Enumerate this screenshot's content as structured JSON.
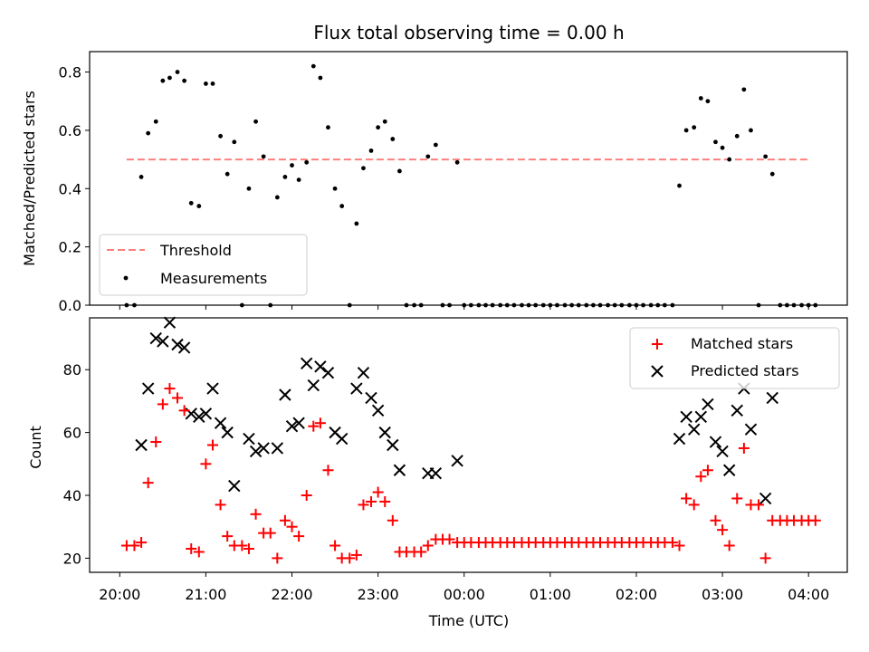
{
  "chart_data": [
    {
      "type": "scatter",
      "title": "Flux total observing time = 0.00 h",
      "xlabel": "",
      "ylabel": "Matched/Predicted stars",
      "ylim": [
        0,
        0.87
      ],
      "yticks": [
        0.0,
        0.2,
        0.4,
        0.6,
        0.8
      ],
      "ytick_labels": [
        "0.0",
        "0.2",
        "0.4",
        "0.6",
        "0.8"
      ],
      "x_unit": "hours since 20:00 UTC",
      "xlim": [
        -0.35,
        8.45
      ],
      "grid": false,
      "legend_position": "lower-left",
      "threshold": {
        "name": "Threshold",
        "value": 0.5,
        "x_range": [
          0.08,
          8.03
        ],
        "color": "#ff7f7f"
      },
      "series": [
        {
          "name": "Measurements",
          "color": "#000000",
          "points": [
            [
              0.08,
              0
            ],
            [
              0.17,
              0
            ],
            [
              0.25,
              0.44
            ],
            [
              0.33,
              0.59
            ],
            [
              0.42,
              0.63
            ],
            [
              0.5,
              0.77
            ],
            [
              0.58,
              0.78
            ],
            [
              0.67,
              0.8
            ],
            [
              0.75,
              0.77
            ],
            [
              0.83,
              0.35
            ],
            [
              0.92,
              0.34
            ],
            [
              1.0,
              0.76
            ],
            [
              1.08,
              0.76
            ],
            [
              1.17,
              0.58
            ],
            [
              1.25,
              0.45
            ],
            [
              1.33,
              0.56
            ],
            [
              1.42,
              0
            ],
            [
              1.5,
              0.4
            ],
            [
              1.58,
              0.63
            ],
            [
              1.67,
              0.51
            ],
            [
              1.75,
              0
            ],
            [
              1.83,
              0.37
            ],
            [
              1.92,
              0.44
            ],
            [
              2.0,
              0.48
            ],
            [
              2.08,
              0.43
            ],
            [
              2.17,
              0.49
            ],
            [
              2.25,
              0.82
            ],
            [
              2.33,
              0.78
            ],
            [
              2.42,
              0.61
            ],
            [
              2.5,
              0.4
            ],
            [
              2.58,
              0.34
            ],
            [
              2.67,
              0
            ],
            [
              2.75,
              0.28
            ],
            [
              2.83,
              0.47
            ],
            [
              2.92,
              0.53
            ],
            [
              3.0,
              0.61
            ],
            [
              3.08,
              0.63
            ],
            [
              3.17,
              0.57
            ],
            [
              3.25,
              0.46
            ],
            [
              3.33,
              0
            ],
            [
              3.42,
              0
            ],
            [
              3.5,
              0
            ],
            [
              3.58,
              0.51
            ],
            [
              3.67,
              0.55
            ],
            [
              3.75,
              0
            ],
            [
              3.83,
              0
            ],
            [
              3.92,
              0.49
            ],
            [
              4.0,
              0
            ],
            [
              4.08,
              0
            ],
            [
              4.17,
              0
            ],
            [
              4.25,
              0
            ],
            [
              4.33,
              0
            ],
            [
              4.42,
              0
            ],
            [
              4.5,
              0
            ],
            [
              4.58,
              0
            ],
            [
              4.67,
              0
            ],
            [
              4.75,
              0
            ],
            [
              4.83,
              0
            ],
            [
              4.92,
              0
            ],
            [
              5.0,
              0
            ],
            [
              5.08,
              0
            ],
            [
              5.17,
              0
            ],
            [
              5.25,
              0
            ],
            [
              5.33,
              0
            ],
            [
              5.42,
              0
            ],
            [
              5.5,
              0
            ],
            [
              5.58,
              0
            ],
            [
              5.67,
              0
            ],
            [
              5.75,
              0
            ],
            [
              5.83,
              0
            ],
            [
              5.92,
              0
            ],
            [
              6.0,
              0
            ],
            [
              6.08,
              0
            ],
            [
              6.17,
              0
            ],
            [
              6.25,
              0
            ],
            [
              6.33,
              0
            ],
            [
              6.42,
              0
            ],
            [
              6.5,
              0.41
            ],
            [
              6.58,
              0.6
            ],
            [
              6.67,
              0.61
            ],
            [
              6.75,
              0.71
            ],
            [
              6.83,
              0.7
            ],
            [
              6.92,
              0.56
            ],
            [
              7.0,
              0.54
            ],
            [
              7.08,
              0.5
            ],
            [
              7.17,
              0.58
            ],
            [
              7.25,
              0.74
            ],
            [
              7.33,
              0.6
            ],
            [
              7.42,
              0
            ],
            [
              7.5,
              0.51
            ],
            [
              7.58,
              0.45
            ],
            [
              7.67,
              0
            ],
            [
              7.75,
              0
            ],
            [
              7.83,
              0
            ],
            [
              7.92,
              0
            ],
            [
              8.0,
              0
            ],
            [
              8.08,
              0
            ]
          ]
        }
      ],
      "legend": [
        "Threshold",
        "Measurements"
      ]
    },
    {
      "type": "scatter",
      "title": "",
      "xlabel": "Time (UTC)",
      "ylabel": "Count",
      "ylim": [
        15.5,
        96.5
      ],
      "yticks": [
        20,
        40,
        60,
        80
      ],
      "ytick_labels": [
        "20",
        "40",
        "60",
        "80"
      ],
      "x_unit": "hours since 20:00 UTC",
      "xlim": [
        -0.35,
        8.45
      ],
      "xticks": [
        0,
        1,
        2,
        3,
        4,
        5,
        6,
        7,
        8
      ],
      "xtick_labels": [
        "20:00",
        "21:00",
        "22:00",
        "23:00",
        "00:00",
        "01:00",
        "02:00",
        "03:00",
        "04:00"
      ],
      "grid": false,
      "legend_position": "upper-right",
      "series": [
        {
          "name": "Matched stars",
          "marker": "+",
          "color": "#ff0000",
          "points": [
            [
              0.08,
              24
            ],
            [
              0.17,
              24
            ],
            [
              0.25,
              25
            ],
            [
              0.33,
              44
            ],
            [
              0.42,
              57
            ],
            [
              0.5,
              69
            ],
            [
              0.58,
              74
            ],
            [
              0.67,
              71
            ],
            [
              0.75,
              67
            ],
            [
              0.83,
              23
            ],
            [
              0.92,
              22
            ],
            [
              1.0,
              50
            ],
            [
              1.08,
              56
            ],
            [
              1.17,
              37
            ],
            [
              1.25,
              27
            ],
            [
              1.33,
              24
            ],
            [
              1.42,
              24
            ],
            [
              1.5,
              23
            ],
            [
              1.58,
              34
            ],
            [
              1.67,
              28
            ],
            [
              1.75,
              28
            ],
            [
              1.83,
              20
            ],
            [
              1.92,
              32
            ],
            [
              2.0,
              30
            ],
            [
              2.08,
              27
            ],
            [
              2.17,
              40
            ],
            [
              2.25,
              62
            ],
            [
              2.33,
              63
            ],
            [
              2.42,
              48
            ],
            [
              2.5,
              24
            ],
            [
              2.58,
              20
            ],
            [
              2.67,
              20
            ],
            [
              2.75,
              21
            ],
            [
              2.83,
              37
            ],
            [
              2.92,
              38
            ],
            [
              3.0,
              41
            ],
            [
              3.08,
              38
            ],
            [
              3.17,
              32
            ],
            [
              3.25,
              22
            ],
            [
              3.33,
              22
            ],
            [
              3.42,
              22
            ],
            [
              3.5,
              22
            ],
            [
              3.58,
              24
            ],
            [
              3.67,
              26
            ],
            [
              3.75,
              26
            ],
            [
              3.83,
              26
            ],
            [
              3.92,
              25
            ],
            [
              4.0,
              25
            ],
            [
              4.08,
              25
            ],
            [
              4.17,
              25
            ],
            [
              4.25,
              25
            ],
            [
              4.33,
              25
            ],
            [
              4.42,
              25
            ],
            [
              4.5,
              25
            ],
            [
              4.58,
              25
            ],
            [
              4.67,
              25
            ],
            [
              4.75,
              25
            ],
            [
              4.83,
              25
            ],
            [
              4.92,
              25
            ],
            [
              5.0,
              25
            ],
            [
              5.08,
              25
            ],
            [
              5.17,
              25
            ],
            [
              5.25,
              25
            ],
            [
              5.33,
              25
            ],
            [
              5.42,
              25
            ],
            [
              5.5,
              25
            ],
            [
              5.58,
              25
            ],
            [
              5.67,
              25
            ],
            [
              5.75,
              25
            ],
            [
              5.83,
              25
            ],
            [
              5.92,
              25
            ],
            [
              6.0,
              25
            ],
            [
              6.08,
              25
            ],
            [
              6.17,
              25
            ],
            [
              6.25,
              25
            ],
            [
              6.33,
              25
            ],
            [
              6.42,
              25
            ],
            [
              6.5,
              24
            ],
            [
              6.58,
              39
            ],
            [
              6.67,
              37
            ],
            [
              6.75,
              46
            ],
            [
              6.83,
              48
            ],
            [
              6.92,
              32
            ],
            [
              7.0,
              29
            ],
            [
              7.08,
              24
            ],
            [
              7.17,
              39
            ],
            [
              7.25,
              55
            ],
            [
              7.33,
              37
            ],
            [
              7.42,
              37
            ],
            [
              7.5,
              20
            ],
            [
              7.58,
              32
            ],
            [
              7.67,
              32
            ],
            [
              7.75,
              32
            ],
            [
              7.83,
              32
            ],
            [
              7.92,
              32
            ],
            [
              8.0,
              32
            ],
            [
              8.08,
              32
            ]
          ]
        },
        {
          "name": "Predicted stars",
          "marker": "x",
          "color": "#000000",
          "points": [
            [
              0.25,
              56
            ],
            [
              0.33,
              74
            ],
            [
              0.42,
              90
            ],
            [
              0.5,
              89
            ],
            [
              0.58,
              95
            ],
            [
              0.67,
              88
            ],
            [
              0.75,
              87
            ],
            [
              0.83,
              66
            ],
            [
              0.92,
              65
            ],
            [
              1.0,
              66
            ],
            [
              1.08,
              74
            ],
            [
              1.17,
              63
            ],
            [
              1.25,
              60
            ],
            [
              1.33,
              43
            ],
            [
              1.5,
              58
            ],
            [
              1.58,
              54
            ],
            [
              1.67,
              55
            ],
            [
              1.83,
              55
            ],
            [
              1.92,
              72
            ],
            [
              2.0,
              62
            ],
            [
              2.08,
              63
            ],
            [
              2.17,
              82
            ],
            [
              2.25,
              75
            ],
            [
              2.33,
              81
            ],
            [
              2.42,
              79
            ],
            [
              2.5,
              60
            ],
            [
              2.58,
              58
            ],
            [
              2.75,
              74
            ],
            [
              2.83,
              79
            ],
            [
              2.92,
              71
            ],
            [
              3.0,
              67
            ],
            [
              3.08,
              60
            ],
            [
              3.17,
              56
            ],
            [
              3.25,
              48
            ],
            [
              3.58,
              47
            ],
            [
              3.67,
              47
            ],
            [
              3.92,
              51
            ],
            [
              6.5,
              58
            ],
            [
              6.58,
              65
            ],
            [
              6.67,
              61
            ],
            [
              6.75,
              65
            ],
            [
              6.83,
              69
            ],
            [
              6.92,
              57
            ],
            [
              7.0,
              54
            ],
            [
              7.08,
              48
            ],
            [
              7.17,
              67
            ],
            [
              7.25,
              74
            ],
            [
              7.33,
              61
            ],
            [
              7.5,
              39
            ],
            [
              7.58,
              71
            ]
          ]
        }
      ],
      "legend": [
        "Matched stars",
        "Predicted stars"
      ]
    }
  ]
}
